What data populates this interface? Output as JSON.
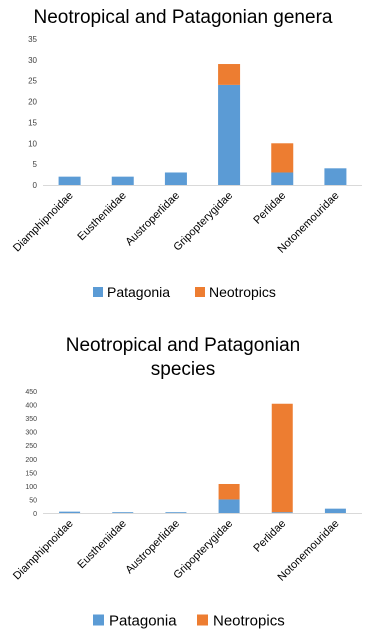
{
  "colors": {
    "patagonia": "#5b9bd5",
    "neotropics": "#ed7d31",
    "grid": "#d9d9d9",
    "axis_text": "#404040"
  },
  "chart_data": [
    {
      "type": "bar",
      "stacked": true,
      "title_lines": [
        "Neotropical and Patagonian genera"
      ],
      "categories": [
        "Diamphipnoidae",
        "Eustheniidae",
        "Austroperlidae",
        "Gripopterygidae",
        "Perlidae",
        "Notonemouridae"
      ],
      "series": [
        {
          "name": "Patagonia",
          "color": "#5b9bd5",
          "values": [
            2,
            2,
            3,
            24,
            3,
            4
          ]
        },
        {
          "name": "Neotropics",
          "color": "#ed7d31",
          "values": [
            0,
            0,
            0,
            5,
            7,
            0
          ]
        }
      ],
      "ylim": [
        0,
        35
      ],
      "yticks": [
        "0",
        "5",
        "10",
        "15",
        "20",
        "25",
        "30",
        "35"
      ],
      "ytick_values": [
        0,
        5,
        10,
        15,
        20,
        25,
        30,
        35
      ],
      "grid": false,
      "legend_position": "bottom",
      "xlabel": "",
      "ylabel": ""
    },
    {
      "type": "bar",
      "stacked": true,
      "title_lines": [
        "Neotropical and Patagonian",
        "species"
      ],
      "categories": [
        "Diamphipnoidae",
        "Eustheniidae",
        "Austroperlidae",
        "Gripopterygidae",
        "Perlidae",
        "Notonemouridae"
      ],
      "series": [
        {
          "name": "Patagonia",
          "color": "#5b9bd5",
          "values": [
            5,
            3,
            3,
            50,
            3,
            16
          ]
        },
        {
          "name": "Neotropics",
          "color": "#ed7d31",
          "values": [
            0,
            0,
            0,
            57,
            400,
            0
          ]
        }
      ],
      "ylim": [
        0,
        450
      ],
      "yticks": [
        "0",
        "50",
        "100",
        "150",
        "200",
        "250",
        "300",
        "350",
        "400",
        "450"
      ],
      "ytick_values": [
        0,
        50,
        100,
        150,
        200,
        250,
        300,
        350,
        400,
        450
      ],
      "grid": false,
      "legend_position": "bottom",
      "xlabel": "",
      "ylabel": ""
    }
  ]
}
